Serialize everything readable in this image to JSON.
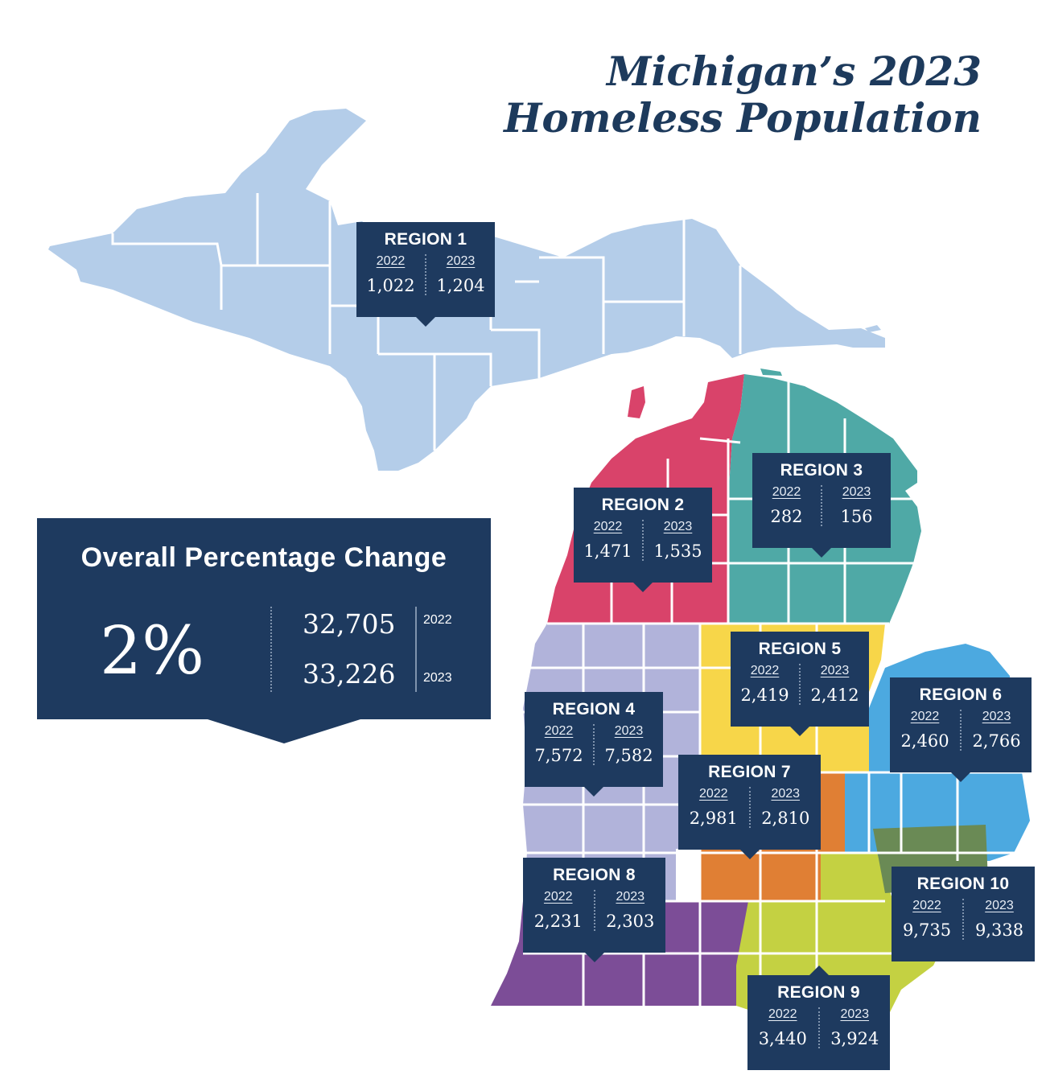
{
  "title": {
    "line1": "Michigan’s 2023",
    "line2": "Homeless Population"
  },
  "colors": {
    "navy": "#1e3a5f",
    "region1": "#b4cde9",
    "region2": "#d9436a",
    "region3": "#4fa9a6",
    "region4": "#b1b3da",
    "region5": "#f7d649",
    "region6": "#4ca9e0",
    "region7": "#e07f34",
    "region8": "#7c4d97",
    "region9": "#c4d142",
    "region10": "#6a8a55"
  },
  "summary": {
    "title": "Overall Percentage Change",
    "percent": "2%",
    "value_2022": "32,705",
    "value_2023": "33,226",
    "year_2022": "2022",
    "year_2023": "2023"
  },
  "regions": [
    {
      "name": "REGION 1",
      "y1": "2022",
      "y2": "2023",
      "v1": "1,022",
      "v2": "1,204"
    },
    {
      "name": "REGION 2",
      "y1": "2022",
      "y2": "2023",
      "v1": "1,471",
      "v2": "1,535"
    },
    {
      "name": "REGION 3",
      "y1": "2022",
      "y2": "2023",
      "v1": "282",
      "v2": "156"
    },
    {
      "name": "REGION 4",
      "y1": "2022",
      "y2": "2023",
      "v1": "7,572",
      "v2": "7,582"
    },
    {
      "name": "REGION 5",
      "y1": "2022",
      "y2": "2023",
      "v1": "2,419",
      "v2": "2,412"
    },
    {
      "name": "REGION 6",
      "y1": "2022",
      "y2": "2023",
      "v1": "2,460",
      "v2": "2,766"
    },
    {
      "name": "REGION 7",
      "y1": "2022",
      "y2": "2023",
      "v1": "2,981",
      "v2": "2,810"
    },
    {
      "name": "REGION 8",
      "y1": "2022",
      "y2": "2023",
      "v1": "2,231",
      "v2": "2,303"
    },
    {
      "name": "REGION 9",
      "y1": "2022",
      "y2": "2023",
      "v1": "3,440",
      "v2": "3,924"
    },
    {
      "name": "REGION 10",
      "y1": "2022",
      "y2": "2023",
      "v1": "9,735",
      "v2": "9,338"
    }
  ]
}
